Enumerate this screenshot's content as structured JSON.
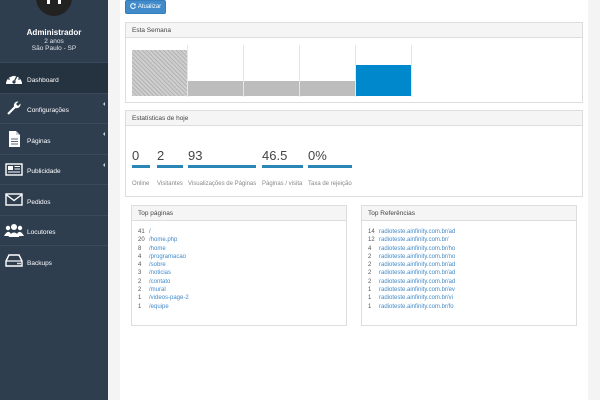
{
  "profile": {
    "name": "Administrador",
    "age": "2 anos",
    "city": "São Paulo - SP"
  },
  "sidebar": {
    "items": [
      {
        "label": "Dashboard",
        "icon": "dashboard-icon",
        "active": true,
        "caret": false
      },
      {
        "label": "Configurações",
        "icon": "wrench-icon",
        "active": false,
        "caret": true
      },
      {
        "label": "Páginas",
        "icon": "file-icon",
        "active": false,
        "caret": true
      },
      {
        "label": "Publicidade",
        "icon": "newspaper-icon",
        "active": false,
        "caret": true
      },
      {
        "label": "Pedidos",
        "icon": "envelope-icon",
        "active": false,
        "caret": false
      },
      {
        "label": "Locutores",
        "icon": "users-icon",
        "active": false,
        "caret": false
      },
      {
        "label": "Backups",
        "icon": "hdd-icon",
        "active": false,
        "caret": false
      }
    ]
  },
  "toolbar": {
    "refresh_label": "Atualizar"
  },
  "week": {
    "title": "Esta Semana",
    "chart_data": {
      "type": "bar",
      "values": [
        100,
        33,
        33,
        33,
        67
      ],
      "ylim": [
        0,
        100
      ],
      "highlight_index": 4,
      "colors": {
        "default": "#bdbdbd",
        "highlight": "#0088cc"
      }
    }
  },
  "today": {
    "title": "Estatísticas de hoje",
    "stats": [
      {
        "value": "0",
        "label": "Online"
      },
      {
        "value": "2",
        "label": "Visitantes"
      },
      {
        "value": "93",
        "label": "Visualizações de Páginas"
      },
      {
        "value": "46.5",
        "label": "Páginas / visita"
      },
      {
        "value": "0%",
        "label": "Taxa de rejeição"
      }
    ]
  },
  "top_pages": {
    "title": "Top páginas",
    "rows": [
      {
        "count": "41",
        "path": "/"
      },
      {
        "count": "20",
        "path": "/home.php"
      },
      {
        "count": "8",
        "path": "/home"
      },
      {
        "count": "4",
        "path": "/programacao"
      },
      {
        "count": "4",
        "path": "/sobre"
      },
      {
        "count": "3",
        "path": "/noticias"
      },
      {
        "count": "2",
        "path": "/contato"
      },
      {
        "count": "2",
        "path": "/mural"
      },
      {
        "count": "1",
        "path": "/videos-page-2"
      },
      {
        "count": "1",
        "path": "/equipe"
      }
    ]
  },
  "top_refs": {
    "title": "Top Referências",
    "rows": [
      {
        "count": "14",
        "url": "radioteste.ainfinity.com.br/ad"
      },
      {
        "count": "12",
        "url": "radioteste.ainfinity.com.br/"
      },
      {
        "count": "4",
        "url": "radioteste.ainfinity.com.br/ho"
      },
      {
        "count": "2",
        "url": "radioteste.ainfinity.com.br/no"
      },
      {
        "count": "2",
        "url": "radioteste.ainfinity.com.br/ad"
      },
      {
        "count": "2",
        "url": "radioteste.ainfinity.com.br/ad"
      },
      {
        "count": "2",
        "url": "radioteste.ainfinity.com.br/ad"
      },
      {
        "count": "1",
        "url": "radioteste.ainfinity.com.br/ev"
      },
      {
        "count": "1",
        "url": "radioteste.ainfinity.com.br/vi"
      },
      {
        "count": "1",
        "url": "radioteste.ainfinity.com.br/fo"
      }
    ]
  }
}
